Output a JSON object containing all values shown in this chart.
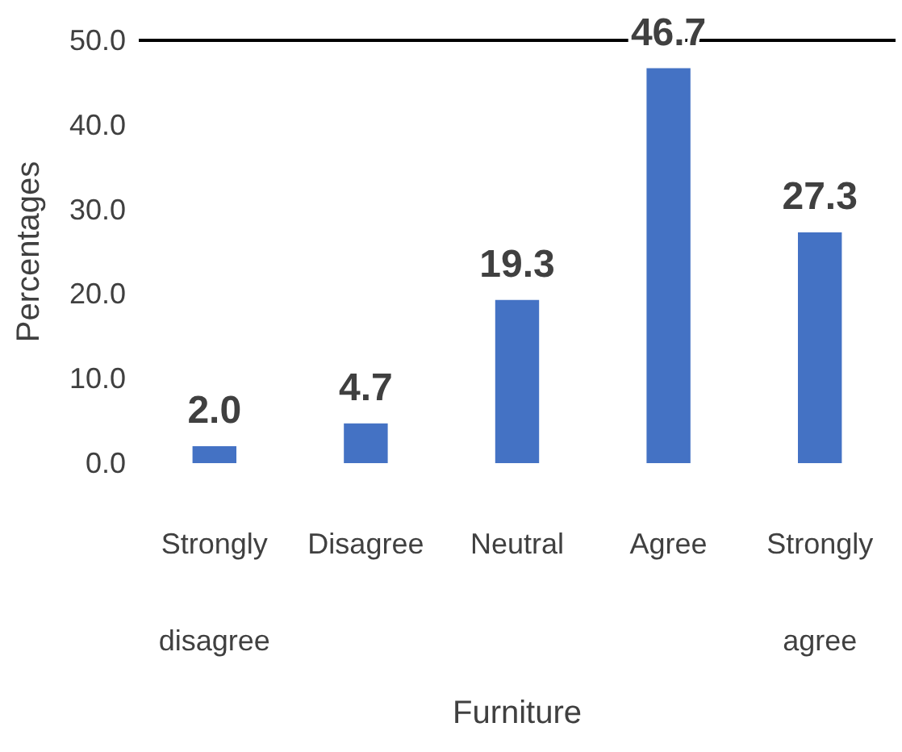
{
  "chart_data": {
    "type": "bar",
    "xlabel": "Furniture",
    "ylabel": "Percentages",
    "categories": [
      "Strongly disagree",
      "Disagree",
      "Neutral",
      "Agree",
      "Strongly agree"
    ],
    "values": [
      2.0,
      4.7,
      19.3,
      46.7,
      27.3
    ],
    "color": "#4472c4",
    "value_labels": [
      "2.0",
      "4.7",
      "19.3",
      "46.7",
      "27.3"
    ],
    "ylim": [
      0,
      50
    ],
    "yticks": [
      {
        "value": 0,
        "label": "0.0"
      },
      {
        "value": 10,
        "label": "10.0"
      },
      {
        "value": 20,
        "label": "20.0"
      },
      {
        "value": 30,
        "label": "30.0"
      },
      {
        "value": 40,
        "label": "40.0"
      },
      {
        "value": 50,
        "label": "50.0"
      }
    ],
    "ref_lines": [
      {
        "axis": "y",
        "value": 50,
        "color": "#000000"
      }
    ],
    "grid": false
  }
}
